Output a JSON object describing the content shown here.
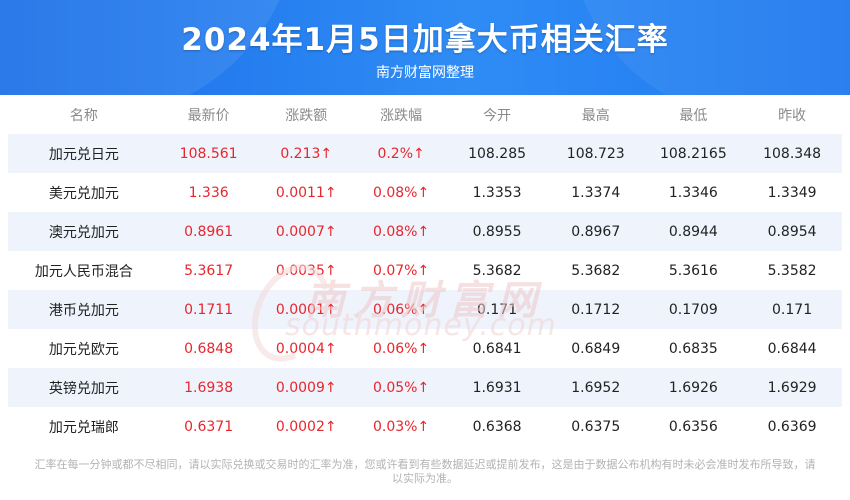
{
  "header": {
    "title": "2024年1月5日加拿大币相关汇率",
    "subtitle": "南方财富网整理"
  },
  "watermark": {
    "chinese": "南方财富网",
    "english": "southmoney.com"
  },
  "table": {
    "columns": [
      "名称",
      "最新价",
      "涨跌额",
      "涨跌幅",
      "今开",
      "最高",
      "最低",
      "昨收"
    ],
    "rows": [
      [
        "加元兑日元",
        "108.561",
        "0.213↑",
        "0.2%↑",
        "108.285",
        "108.723",
        "108.2165",
        "108.348"
      ],
      [
        "美元兑加元",
        "1.336",
        "0.0011↑",
        "0.08%↑",
        "1.3353",
        "1.3374",
        "1.3346",
        "1.3349"
      ],
      [
        "澳元兑加元",
        "0.8961",
        "0.0007↑",
        "0.08%↑",
        "0.8955",
        "0.8967",
        "0.8944",
        "0.8954"
      ],
      [
        "加元人民币混合",
        "5.3617",
        "0.0035↑",
        "0.07%↑",
        "5.3682",
        "5.3682",
        "5.3616",
        "5.3582"
      ],
      [
        "港币兑加元",
        "0.1711",
        "0.0001↑",
        "0.06%↑",
        "0.171",
        "0.1712",
        "0.1709",
        "0.171"
      ],
      [
        "加元兑欧元",
        "0.6848",
        "0.0004↑",
        "0.06%↑",
        "0.6841",
        "0.6849",
        "0.6835",
        "0.6844"
      ],
      [
        "英镑兑加元",
        "1.6938",
        "0.0009↑",
        "0.05%↑",
        "1.6931",
        "1.6952",
        "1.6926",
        "1.6929"
      ],
      [
        "加元兑瑞郎",
        "0.6371",
        "0.0002↑",
        "0.03%↑",
        "0.6368",
        "0.6375",
        "0.6356",
        "0.6369"
      ]
    ]
  },
  "footnote": "汇率在每一分钟或都不尽相同，请以实际兑换或交易时的汇率为准，您或许看到有些数据延迟或提前发布，这是由于数据公布机构有时未必会准时发布所导致，请以实际为准。",
  "colors": {
    "header_blue": "#1f78ef",
    "up_red": "#e8262e",
    "row_shade": "#eef3fc"
  }
}
